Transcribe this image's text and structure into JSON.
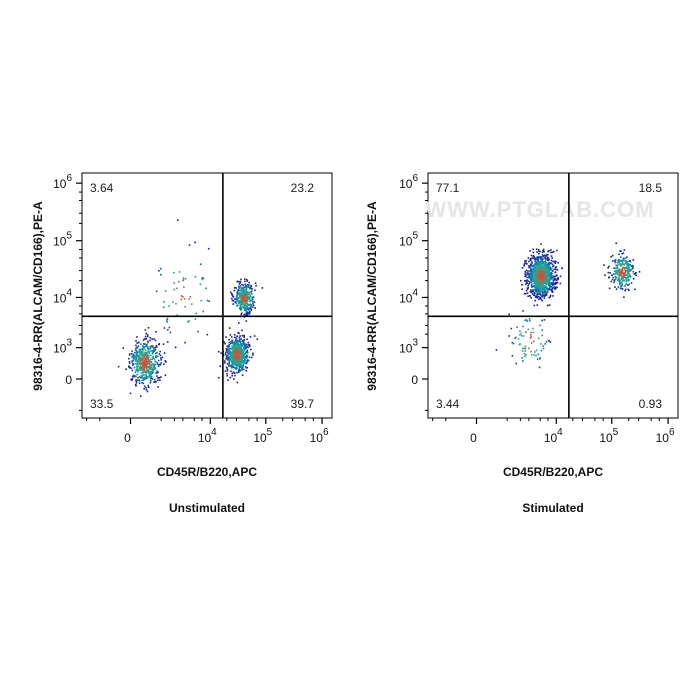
{
  "chart_data": [
    {
      "type": "scatter",
      "title": "",
      "xlabel": "CD45R/B220,APC",
      "ylabel": "98316-4-RR(ALCAM/CD166),PE-A",
      "caption": "Unstimulated",
      "x_ticks": [
        {
          "value": 0,
          "base": "0",
          "exp": ""
        },
        {
          "value": 10000,
          "base": "10",
          "exp": "4"
        },
        {
          "value": 100000,
          "base": "10",
          "exp": "5"
        },
        {
          "value": 1000000,
          "base": "10",
          "exp": "6"
        }
      ],
      "y_ticks": [
        {
          "value": 0,
          "base": "0",
          "exp": ""
        },
        {
          "value": 1000,
          "base": "10",
          "exp": "3"
        },
        {
          "value": 10000,
          "base": "10",
          "exp": "4"
        },
        {
          "value": 100000,
          "base": "10",
          "exp": "5"
        },
        {
          "value": 1000000,
          "base": "10",
          "exp": "6"
        }
      ],
      "gate": {
        "x": 17000,
        "y": 4500
      },
      "quadrants": {
        "upper_left": "3.64",
        "upper_right": "23.2",
        "lower_left": "33.5",
        "lower_right": "39.7"
      },
      "clusters": [
        {
          "x": 300,
          "y": 400,
          "spread": 0.45,
          "weight": 0.34
        },
        {
          "x": 30000,
          "y": 700,
          "spread": 0.35,
          "weight": 0.4
        },
        {
          "x": 40000,
          "y": 10000,
          "spread": 0.3,
          "weight": 0.22
        },
        {
          "x": 3000,
          "y": 12000,
          "spread": 0.9,
          "weight": 0.04
        }
      ]
    },
    {
      "type": "scatter",
      "title": "",
      "xlabel": "CD45R/B220,APC",
      "ylabel": "98316-4-RR(ALCAM/CD166),PE-A",
      "caption": "Stimulated",
      "watermark": "WWW.PTGLAB.COM",
      "x_ticks": [
        {
          "value": 0,
          "base": "0",
          "exp": ""
        },
        {
          "value": 10000,
          "base": "10",
          "exp": "4"
        },
        {
          "value": 100000,
          "base": "10",
          "exp": "5"
        },
        {
          "value": 1000000,
          "base": "10",
          "exp": "6"
        }
      ],
      "y_ticks": [
        {
          "value": 0,
          "base": "0",
          "exp": ""
        },
        {
          "value": 1000,
          "base": "10",
          "exp": "3"
        },
        {
          "value": 10000,
          "base": "10",
          "exp": "4"
        },
        {
          "value": 100000,
          "base": "10",
          "exp": "5"
        },
        {
          "value": 1000000,
          "base": "10",
          "exp": "6"
        }
      ],
      "gate": {
        "x": 17000,
        "y": 4500
      },
      "quadrants": {
        "upper_left": "77.1",
        "upper_right": "18.5",
        "lower_left": "3.44",
        "lower_right": "0.93"
      },
      "clusters": [
        {
          "x": 5000,
          "y": 25000,
          "spread": 0.4,
          "weight": 0.77
        },
        {
          "x": 150000,
          "y": 30000,
          "spread": 0.35,
          "weight": 0.18
        },
        {
          "x": 3000,
          "y": 1500,
          "spread": 0.6,
          "weight": 0.05
        }
      ]
    }
  ],
  "colors": {
    "axis": "#000000",
    "gate_line": "#000000",
    "density_low": "#1a1aa6",
    "density_mid": "#10b0a0",
    "density_high": "#ff3a1a"
  }
}
